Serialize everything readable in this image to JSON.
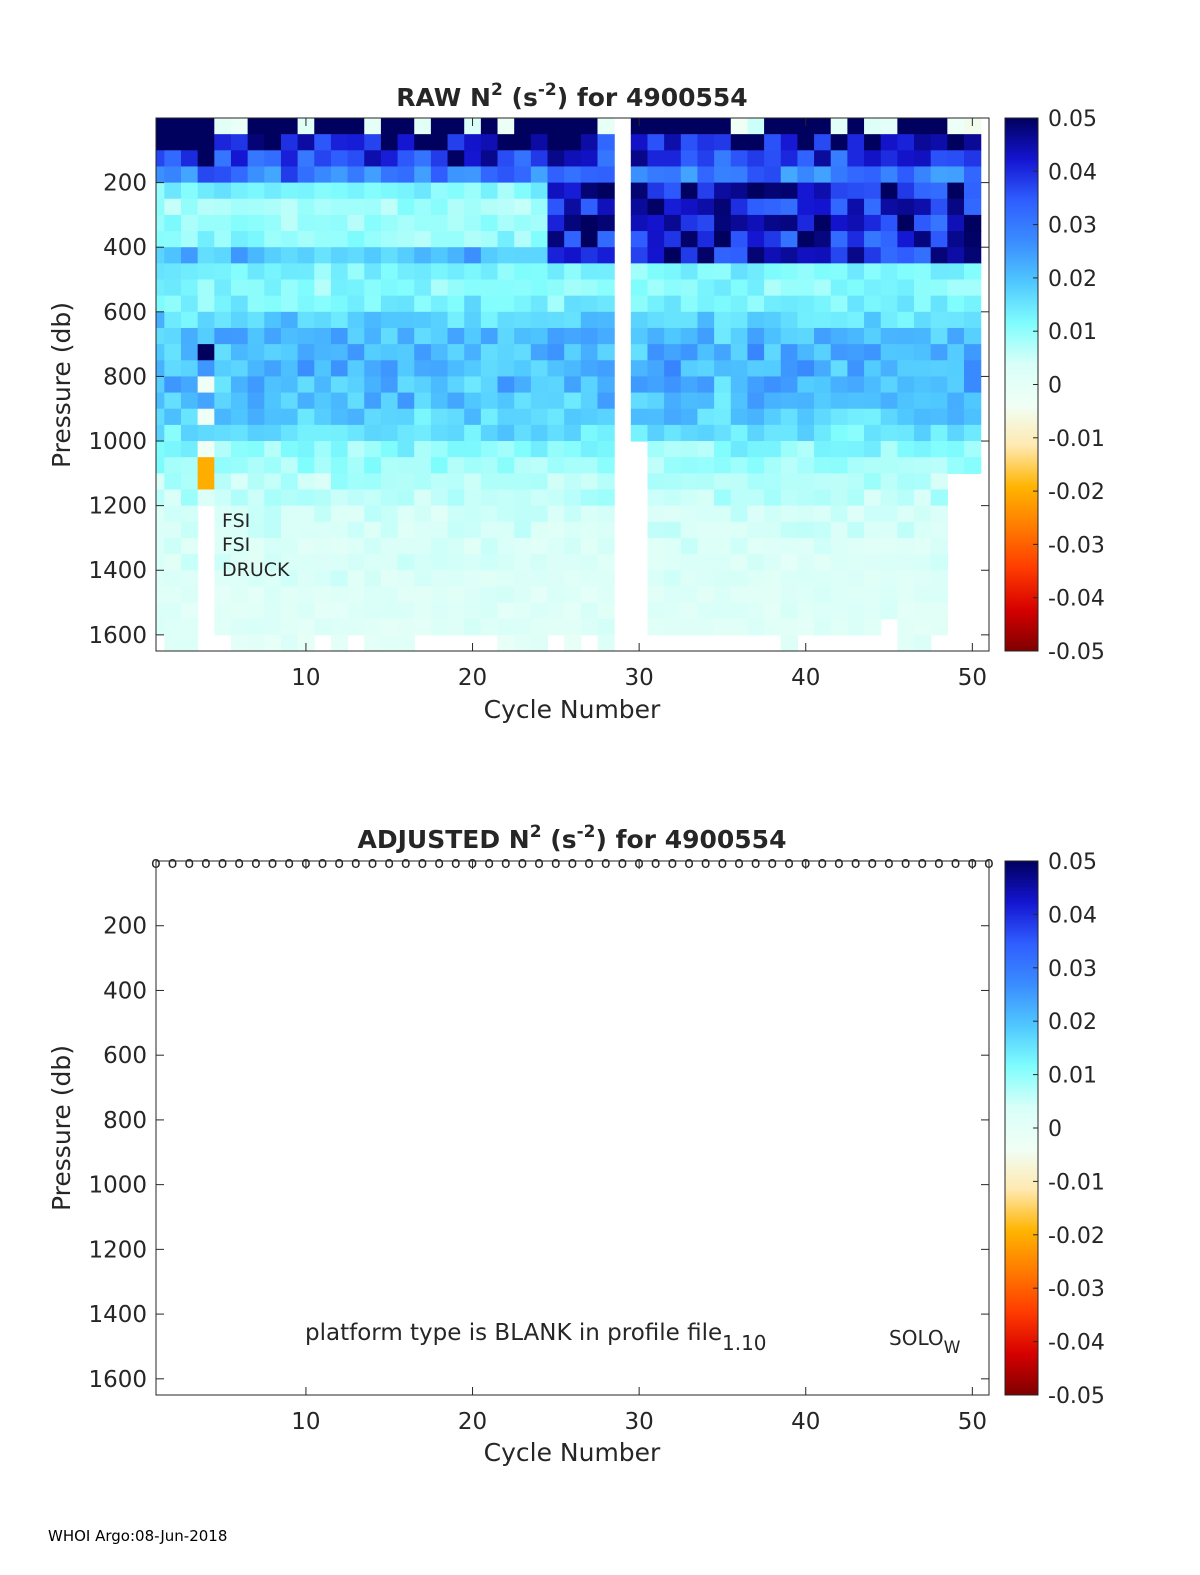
{
  "float_id": "4900554",
  "footer": "WHOI Argo:08-Jun-2018",
  "annotations": {
    "sensors": [
      "FSI",
      "FSI",
      "DRUCK"
    ],
    "platform_note": "platform type is BLANK in profile file",
    "version": "1.10",
    "float_type_main": "SOLO",
    "float_type_sub": "W"
  },
  "colors": {
    "cmap": [
      "#7f0000",
      "#d50000",
      "#ff3a00",
      "#ff7a00",
      "#ffb400",
      "#ffe9b0",
      "#f0fff6",
      "#d8fff8",
      "#7ffdfd",
      "#4fc7ff",
      "#3a8cff",
      "#2f5dff",
      "#1414d0",
      "#00005e"
    ],
    "axis": "#262626",
    "marker": "#000000"
  },
  "chart_data": [
    {
      "type": "heatmap",
      "name": "raw",
      "title_prefix": "RAW N",
      "title_sup1": "2",
      "title_mid": " (s",
      "title_sup2": "-2",
      "title_suffix": ") for ",
      "xlabel": "Cycle Number",
      "ylabel": "Pressure (db)",
      "xlim": [
        1,
        51
      ],
      "ylim": [
        1650,
        0
      ],
      "xticks": [
        10,
        20,
        30,
        40,
        50
      ],
      "yticks": [
        200,
        400,
        600,
        800,
        1000,
        1200,
        1400,
        1600
      ],
      "colorbar": {
        "range": [
          -0.05,
          0.05
        ],
        "ticks": [
          0.05,
          0.04,
          0.03,
          0.02,
          0.01,
          0,
          -0.01,
          -0.02,
          -0.03,
          -0.04,
          -0.05
        ],
        "tick_labels": [
          "0.05",
          "0.04",
          "0.03",
          "0.02",
          "0.01",
          "0",
          "-0.01",
          "-0.02",
          "-0.03",
          "-0.04",
          "-0.05"
        ]
      },
      "pressure_levels": [
        25,
        75,
        125,
        175,
        225,
        275,
        325,
        375,
        425,
        475,
        525,
        575,
        625,
        675,
        725,
        775,
        825,
        875,
        925,
        975,
        1025,
        1075,
        1125,
        1175,
        1225,
        1275,
        1325,
        1375,
        1425,
        1475,
        1525,
        1575,
        1625
      ],
      "missing_cycles": [
        29
      ],
      "gap_bands": [
        {
          "cycle_range": [
            29,
            30
          ],
          "pressure_range": [
            1000,
            1650
          ]
        }
      ],
      "profile_depth_by_cycle": [
        1600,
        1650,
        1650,
        1200,
        1600,
        1650,
        1650,
        1650,
        1650,
        1650,
        1600,
        1650,
        1600,
        1650,
        1650,
        1650,
        1600,
        1600,
        1600,
        1600,
        1600,
        1650,
        1650,
        1650,
        1600,
        1650,
        1600,
        1650,
        0,
        1000,
        1600,
        1600,
        1600,
        1600,
        1600,
        1600,
        1600,
        1600,
        1650,
        1600,
        1600,
        1600,
        1600,
        1600,
        1550,
        1650,
        1650,
        1600,
        1100,
        1100
      ],
      "cycle4_anomaly": [
        {
          "p": 725,
          "n2": 0.05
        },
        {
          "p": 825,
          "n2": -0.004
        },
        {
          "p": 925,
          "n2": -0.004
        },
        {
          "p": 1025,
          "n2": -0.004
        },
        {
          "p": 1100,
          "n2": -0.02
        }
      ],
      "typical_profile_n2": [
        0.05,
        0.045,
        0.04,
        0.03,
        0.012,
        0.008,
        0.009,
        0.01,
        0.02,
        0.012,
        0.011,
        0.013,
        0.017,
        0.02,
        0.021,
        0.022,
        0.021,
        0.02,
        0.018,
        0.015,
        0.011,
        0.008,
        0.007,
        0.006,
        0.004,
        0.004,
        0.003,
        0.003,
        0.003,
        0.002,
        0.002,
        0.002,
        0.001
      ]
    },
    {
      "type": "heatmap",
      "name": "adjusted",
      "title_prefix": "ADJUSTED N",
      "title_sup1": "2",
      "title_mid": " (s",
      "title_sup2": "-2",
      "title_suffix": ") for ",
      "xlabel": "Cycle Number",
      "ylabel": "Pressure (db)",
      "xlim": [
        1,
        51
      ],
      "ylim": [
        1650,
        0
      ],
      "xticks": [
        10,
        20,
        30,
        40,
        50
      ],
      "yticks": [
        200,
        400,
        600,
        800,
        1000,
        1200,
        1400,
        1600
      ],
      "colorbar": {
        "range": [
          -0.05,
          0.05
        ],
        "ticks": [
          0.05,
          0.04,
          0.03,
          0.02,
          0.01,
          0,
          -0.01,
          -0.02,
          -0.03,
          -0.04,
          -0.05
        ],
        "tick_labels": [
          "0.05",
          "0.04",
          "0.03",
          "0.02",
          "0.01",
          "0",
          "-0.01",
          "-0.02",
          "-0.03",
          "-0.04",
          "-0.05"
        ]
      },
      "marker_symbol": "o",
      "marker_pressure": 0,
      "marker_cycles": [
        1,
        2,
        3,
        4,
        5,
        6,
        7,
        8,
        9,
        10,
        11,
        12,
        13,
        14,
        15,
        16,
        17,
        18,
        19,
        20,
        21,
        22,
        23,
        24,
        25,
        26,
        27,
        28,
        29,
        30,
        31,
        32,
        33,
        34,
        35,
        36,
        37,
        38,
        39,
        40,
        41,
        42,
        43,
        44,
        45,
        46,
        47,
        48,
        49,
        50,
        51
      ]
    }
  ]
}
